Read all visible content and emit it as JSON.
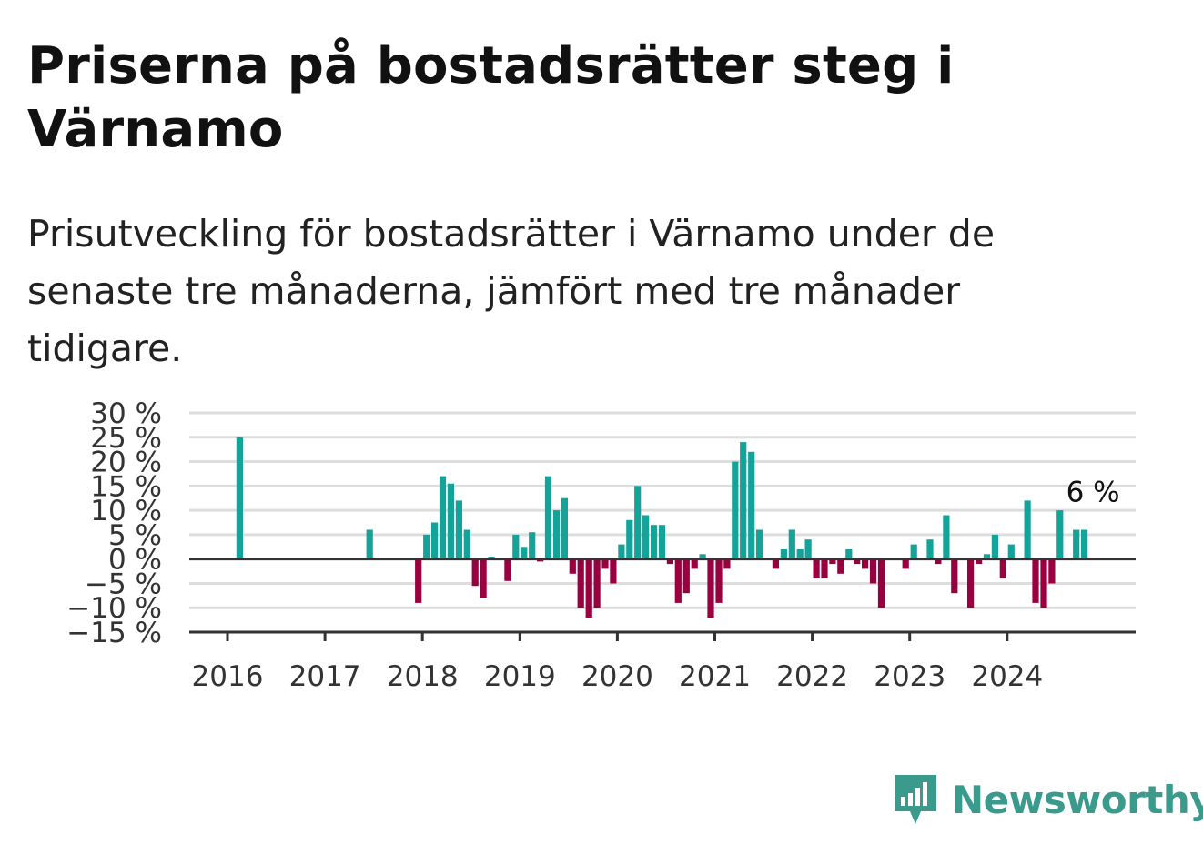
{
  "title": "Priserna på bostadsrätter steg i Värnamo",
  "subtitle": "Prisutveckling för bostadsrätter i Värnamo under de senaste tre månaderna, jämfört med tre månader tidigare.",
  "brand": {
    "name": "Newsworthy",
    "color": "#3a9a8c"
  },
  "chart_data": {
    "type": "bar",
    "ylim": [
      -15,
      30
    ],
    "yticks": [
      30,
      25,
      20,
      15,
      10,
      5,
      0,
      -5,
      -10,
      -15
    ],
    "ytick_labels": [
      "30 %",
      "25 %",
      "20 %",
      "15 %",
      "10 %",
      "5 %",
      "0 %",
      "−5 %",
      "−10 %",
      "−15 %"
    ],
    "xtick_labels": [
      "2016",
      "2017",
      "2018",
      "2019",
      "2020",
      "2021",
      "2022",
      "2023",
      "2024"
    ],
    "grid": true,
    "colors": {
      "positive": "#13a398",
      "negative": "#99003f",
      "grid": "#dddddd",
      "axis": "#333333"
    },
    "annotation": {
      "text": "6 %",
      "date": "2024-10",
      "value": 6
    },
    "x": [
      "2016-02",
      "2017-06",
      "2017-12",
      "2018-01",
      "2018-02",
      "2018-03",
      "2018-04",
      "2018-05",
      "2018-06",
      "2018-07",
      "2018-08",
      "2018-09",
      "2018-11",
      "2018-12",
      "2019-01",
      "2019-02",
      "2019-03",
      "2019-04",
      "2019-05",
      "2019-06",
      "2019-07",
      "2019-08",
      "2019-09",
      "2019-10",
      "2019-11",
      "2019-12",
      "2020-01",
      "2020-02",
      "2020-03",
      "2020-04",
      "2020-05",
      "2020-06",
      "2020-07",
      "2020-08",
      "2020-09",
      "2020-10",
      "2020-11",
      "2020-12",
      "2021-01",
      "2021-02",
      "2021-03",
      "2021-04",
      "2021-05",
      "2021-06",
      "2021-08",
      "2021-09",
      "2021-10",
      "2021-11",
      "2021-12",
      "2022-01",
      "2022-02",
      "2022-03",
      "2022-04",
      "2022-05",
      "2022-06",
      "2022-07",
      "2022-08",
      "2022-09",
      "2022-12",
      "2023-01",
      "2023-03",
      "2023-04",
      "2023-05",
      "2023-06",
      "2023-08",
      "2023-09",
      "2023-10",
      "2023-11",
      "2023-12",
      "2024-01",
      "2024-03",
      "2024-04",
      "2024-05",
      "2024-06",
      "2024-07",
      "2024-09",
      "2024-10"
    ],
    "values": [
      25,
      6,
      -9,
      5,
      7.5,
      17,
      15.5,
      12,
      6,
      -5.5,
      -8,
      0.5,
      -4.5,
      5,
      2.5,
      5.5,
      -0.5,
      17,
      10,
      12.5,
      -3,
      -10,
      -12,
      -10,
      -2,
      -5,
      3,
      8,
      15,
      9,
      7,
      7,
      -1,
      -9,
      -7,
      -2,
      1,
      -12,
      -9,
      -2,
      20,
      24,
      22,
      6,
      -2,
      2,
      6,
      2,
      4,
      -4,
      -4,
      -1,
      -3,
      2,
      -1,
      -2,
      -5,
      -10,
      -2,
      3,
      4,
      -1,
      9,
      -7,
      -10,
      -1,
      1,
      5,
      -4,
      3,
      12,
      -9,
      -10,
      -5,
      10,
      6,
      6
    ]
  }
}
